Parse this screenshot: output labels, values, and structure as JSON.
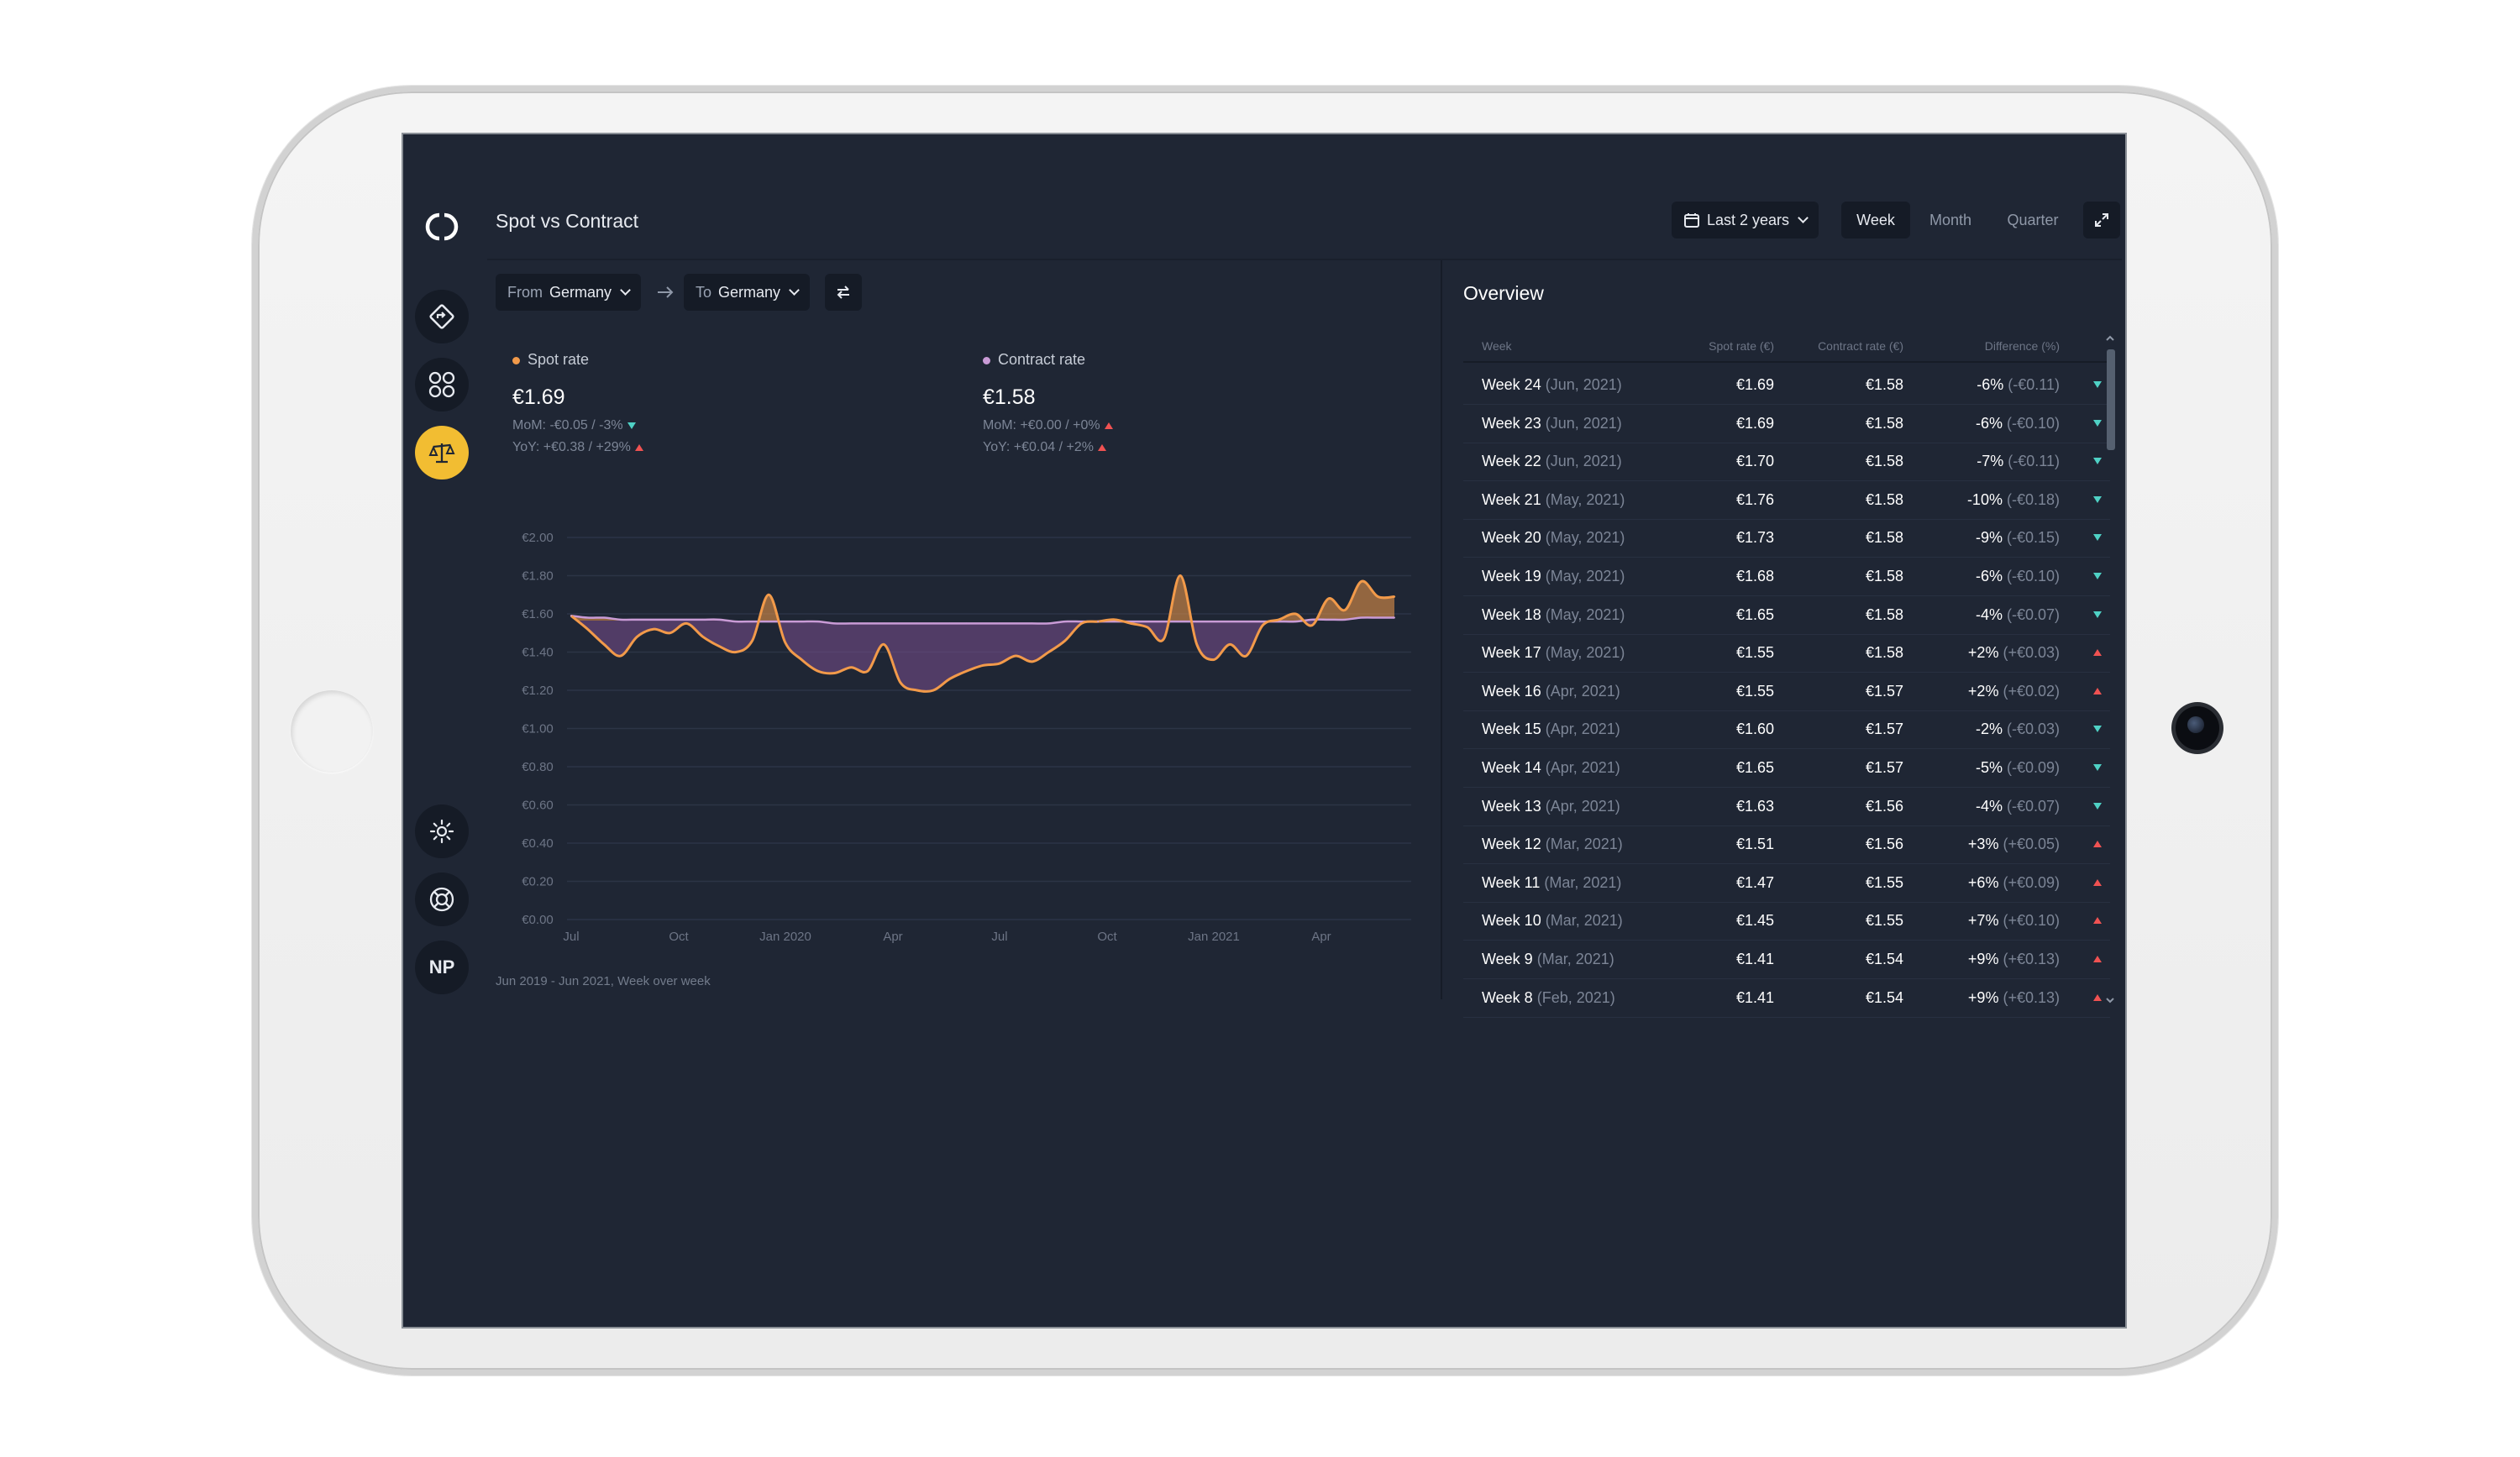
{
  "app": {
    "title": "Spot vs Contract",
    "logo_icon": "brand-logo-icon"
  },
  "sidebar": {
    "items": [
      {
        "icon": "route-icon",
        "active": false
      },
      {
        "icon": "apps-grid-icon",
        "active": false
      },
      {
        "icon": "balance-scale-icon",
        "active": true
      }
    ],
    "bottom": [
      {
        "icon": "sun-icon"
      },
      {
        "icon": "lifebuoy-icon"
      }
    ],
    "avatar_initials": "NP"
  },
  "header": {
    "date_range": "Last 2 years",
    "granularity": [
      "Week",
      "Month",
      "Quarter"
    ],
    "granularity_selected": "Week"
  },
  "filters": {
    "from_label": "From",
    "from_value": "Germany",
    "to_label": "To",
    "to_value": "Germany"
  },
  "stats": {
    "spot": {
      "label": "Spot rate",
      "value": "€1.69",
      "mom": "MoM: -€0.05 / -3%",
      "yoy": "YoY: +€0.38 / +29%",
      "color": "#f29a4a"
    },
    "contract": {
      "label": "Contract rate",
      "value": "€1.58",
      "mom": "MoM: +€0.00 / +0%",
      "yoy": "YoY: +€0.04 / +2%",
      "color": "#c99bd6"
    }
  },
  "chart_data": {
    "type": "area",
    "y_ticks": [
      "€2.00",
      "€1.80",
      "€1.60",
      "€1.40",
      "€1.20",
      "€1.00",
      "€0.80",
      "€0.60",
      "€0.40",
      "€0.20",
      "€0.00"
    ],
    "ylim": [
      0,
      2.0
    ],
    "x_ticks": [
      "Jul",
      "Oct",
      "Jan 2020",
      "Apr",
      "Jul",
      "Oct",
      "Jan 2021",
      "Apr"
    ],
    "x_label": "Jun 2019 - Jun 2021, Week over week",
    "grid": true,
    "series": [
      {
        "name": "Spot rate",
        "color": "#f29a4a",
        "values": [
          1.59,
          1.52,
          1.44,
          1.38,
          1.48,
          1.52,
          1.5,
          1.55,
          1.48,
          1.43,
          1.4,
          1.46,
          1.7,
          1.45,
          1.36,
          1.3,
          1.29,
          1.32,
          1.3,
          1.44,
          1.24,
          1.2,
          1.2,
          1.26,
          1.3,
          1.33,
          1.34,
          1.38,
          1.35,
          1.4,
          1.46,
          1.55,
          1.56,
          1.57,
          1.55,
          1.53,
          1.47,
          1.8,
          1.44,
          1.36,
          1.44,
          1.38,
          1.54,
          1.57,
          1.6,
          1.54,
          1.68,
          1.62,
          1.77,
          1.69,
          1.69
        ]
      },
      {
        "name": "Contract rate",
        "color": "#c99bd6",
        "values": [
          1.59,
          1.58,
          1.58,
          1.57,
          1.57,
          1.57,
          1.57,
          1.57,
          1.57,
          1.57,
          1.56,
          1.56,
          1.56,
          1.56,
          1.56,
          1.56,
          1.55,
          1.55,
          1.55,
          1.55,
          1.55,
          1.55,
          1.55,
          1.55,
          1.55,
          1.55,
          1.55,
          1.55,
          1.55,
          1.55,
          1.56,
          1.56,
          1.56,
          1.56,
          1.56,
          1.56,
          1.56,
          1.56,
          1.56,
          1.56,
          1.56,
          1.56,
          1.56,
          1.56,
          1.56,
          1.57,
          1.57,
          1.57,
          1.58,
          1.58,
          1.58
        ]
      }
    ]
  },
  "overview": {
    "title": "Overview",
    "columns": [
      "Week",
      "Spot rate (€)",
      "Contract rate (€)",
      "Difference (%)"
    ],
    "rows": [
      {
        "week": "Week 24",
        "period": "(Jun, 2021)",
        "spot": "€1.69",
        "contract": "€1.58",
        "diff": "-6%",
        "delta": "(-€0.11)",
        "dir": "down"
      },
      {
        "week": "Week 23",
        "period": "(Jun, 2021)",
        "spot": "€1.69",
        "contract": "€1.58",
        "diff": "-6%",
        "delta": "(-€0.10)",
        "dir": "down"
      },
      {
        "week": "Week 22",
        "period": "(Jun, 2021)",
        "spot": "€1.70",
        "contract": "€1.58",
        "diff": "-7%",
        "delta": "(-€0.11)",
        "dir": "down"
      },
      {
        "week": "Week 21",
        "period": "(May, 2021)",
        "spot": "€1.76",
        "contract": "€1.58",
        "diff": "-10%",
        "delta": "(-€0.18)",
        "dir": "down"
      },
      {
        "week": "Week 20",
        "period": "(May, 2021)",
        "spot": "€1.73",
        "contract": "€1.58",
        "diff": "-9%",
        "delta": "(-€0.15)",
        "dir": "down"
      },
      {
        "week": "Week 19",
        "period": "(May, 2021)",
        "spot": "€1.68",
        "contract": "€1.58",
        "diff": "-6%",
        "delta": "(-€0.10)",
        "dir": "down"
      },
      {
        "week": "Week 18",
        "period": "(May, 2021)",
        "spot": "€1.65",
        "contract": "€1.58",
        "diff": "-4%",
        "delta": "(-€0.07)",
        "dir": "down"
      },
      {
        "week": "Week 17",
        "period": "(May, 2021)",
        "spot": "€1.55",
        "contract": "€1.58",
        "diff": "+2%",
        "delta": "(+€0.03)",
        "dir": "up"
      },
      {
        "week": "Week 16",
        "period": "(Apr, 2021)",
        "spot": "€1.55",
        "contract": "€1.57",
        "diff": "+2%",
        "delta": "(+€0.02)",
        "dir": "up"
      },
      {
        "week": "Week 15",
        "period": "(Apr, 2021)",
        "spot": "€1.60",
        "contract": "€1.57",
        "diff": "-2%",
        "delta": "(-€0.03)",
        "dir": "down"
      },
      {
        "week": "Week 14",
        "period": "(Apr, 2021)",
        "spot": "€1.65",
        "contract": "€1.57",
        "diff": "-5%",
        "delta": "(-€0.09)",
        "dir": "down"
      },
      {
        "week": "Week 13",
        "period": "(Apr, 2021)",
        "spot": "€1.63",
        "contract": "€1.56",
        "diff": "-4%",
        "delta": "(-€0.07)",
        "dir": "down"
      },
      {
        "week": "Week 12",
        "period": "(Mar, 2021)",
        "spot": "€1.51",
        "contract": "€1.56",
        "diff": "+3%",
        "delta": "(+€0.05)",
        "dir": "up"
      },
      {
        "week": "Week 11",
        "period": "(Mar, 2021)",
        "spot": "€1.47",
        "contract": "€1.55",
        "diff": "+6%",
        "delta": "(+€0.09)",
        "dir": "up"
      },
      {
        "week": "Week 10",
        "period": "(Mar, 2021)",
        "spot": "€1.45",
        "contract": "€1.55",
        "diff": "+7%",
        "delta": "(+€0.10)",
        "dir": "up"
      },
      {
        "week": "Week 9",
        "period": "(Mar, 2021)",
        "spot": "€1.41",
        "contract": "€1.54",
        "diff": "+9%",
        "delta": "(+€0.13)",
        "dir": "up"
      },
      {
        "week": "Week 8",
        "period": "(Feb, 2021)",
        "spot": "€1.41",
        "contract": "€1.54",
        "diff": "+9%",
        "delta": "(+€0.13)",
        "dir": "up"
      }
    ],
    "colors": {
      "down": "#4fd1c5",
      "up": "#f05252"
    }
  }
}
